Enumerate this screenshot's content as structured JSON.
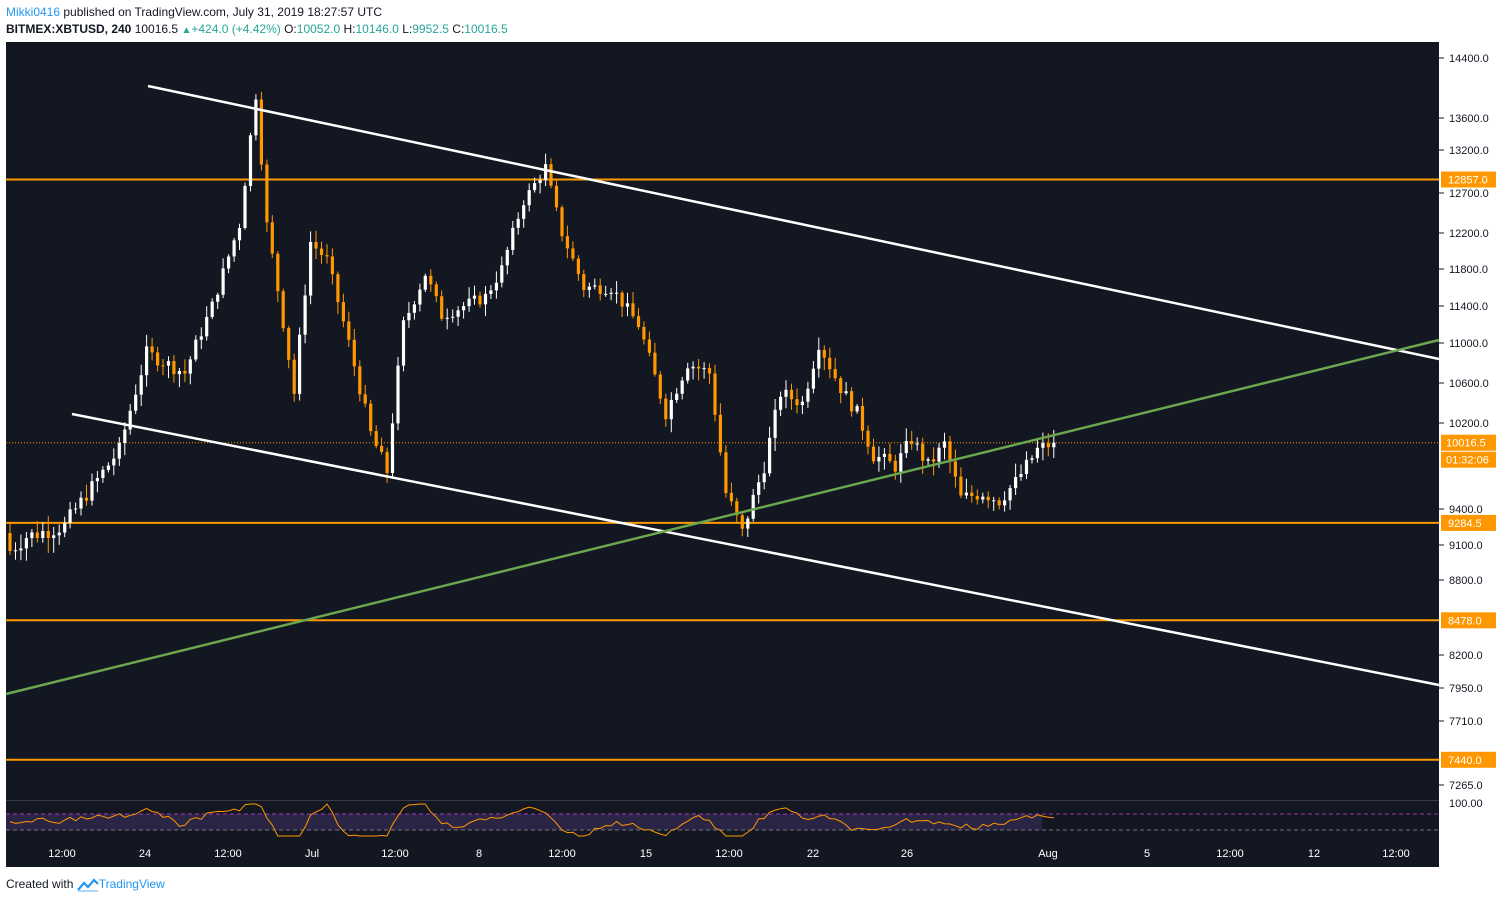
{
  "header": {
    "author": "Mikki0416",
    "published_text": "published on TradingView.com, July 31, 2019 18:27:57 UTC",
    "symbol": "BITMEX:XBTUSD, 240",
    "price": "10016.5",
    "change_icon": "triangle-up-icon",
    "change": "+424.0 (+4.42%)",
    "open_label": "O:",
    "open": "10052.0",
    "high_label": "H:",
    "high": "10146.0",
    "low_label": "L:",
    "low": "9952.5",
    "close_label": "C:",
    "close": "10016.5"
  },
  "footer": {
    "created_with": "Created with",
    "brand": "TradingView",
    "brand_icon": "tradingview-logo-icon"
  },
  "colors": {
    "background": "#131722",
    "bull": "#ffffff",
    "bear": "#ff9800",
    "support": "#ff9800",
    "channel": "#ffffff",
    "trend": "#6aa84f",
    "rsi": "#ff9800"
  },
  "chart_data": {
    "type": "candlestick",
    "symbol": "BITMEX:XBTUSD",
    "interval": "240",
    "y_ticks": [
      14400.0,
      13600.0,
      13200.0,
      12700.0,
      12200.0,
      11800.0,
      11400.0,
      11000.0,
      10600.0,
      10200.0,
      9400.0,
      9100.0,
      8800.0,
      8200.0,
      7950.0,
      7710.0,
      7265.0
    ],
    "y_tick_labels": [
      "14400.0",
      "13600.0",
      "13200.0",
      "12700.0",
      "12200.0",
      "11800.0",
      "11400.0",
      "11000.0",
      "10600.0",
      "10200.0",
      "9400.0",
      "9100.0",
      "8800.0",
      "8200.0",
      "7950.0",
      "7710.0",
      "7265.0"
    ],
    "x_ticks": [
      "12:00",
      "24",
      "12:00",
      "Jul",
      "12:00",
      "8",
      "12:00",
      "15",
      "12:00",
      "22",
      "26",
      "Aug",
      "5",
      "12:00",
      "12",
      "12:00"
    ],
    "horizontal_levels": [
      {
        "label": "12857.0",
        "value": 12857.0
      },
      {
        "label": "9284.5",
        "value": 9284.5
      },
      {
        "label": "8478.0",
        "value": 8478.0
      },
      {
        "label": "7440.0",
        "value": 7440.0
      }
    ],
    "last_price": {
      "label": "10016.5",
      "value": 10016.5
    },
    "countdown": "01:32:06",
    "rsi_label": "100.00",
    "anchors": [
      [
        0,
        9200,
        9050
      ],
      [
        3,
        9100,
        9170
      ],
      [
        10,
        9300,
        9260
      ],
      [
        20,
        10150,
        9950
      ],
      [
        25,
        10850,
        10900
      ],
      [
        32,
        10800,
        10700
      ],
      [
        37,
        10700,
        11400
      ],
      [
        42,
        12500,
        12300
      ],
      [
        45,
        13500,
        13900
      ],
      [
        47,
        12600,
        12300
      ],
      [
        52,
        11200,
        10500
      ],
      [
        55,
        12000,
        12100
      ],
      [
        58,
        11600,
        11900
      ],
      [
        62,
        11300,
        11000
      ],
      [
        66,
        10300,
        10100
      ],
      [
        69,
        10300,
        9750
      ],
      [
        72,
        11100,
        11200
      ],
      [
        76,
        11900,
        11750
      ],
      [
        79,
        11100,
        11300
      ],
      [
        83,
        11350,
        11400
      ],
      [
        87,
        11600,
        11500
      ],
      [
        90,
        11500,
        11800
      ],
      [
        94,
        12500,
        12600
      ],
      [
        98,
        13100,
        13000
      ],
      [
        101,
        12400,
        12200
      ],
      [
        105,
        11700,
        11600
      ],
      [
        110,
        11750,
        11600
      ],
      [
        115,
        11550,
        11200
      ],
      [
        120,
        10600,
        10300
      ],
      [
        124,
        10500,
        10800
      ],
      [
        128,
        10900,
        10700
      ],
      [
        131,
        9800,
        9550
      ],
      [
        134,
        9550,
        9200
      ],
      [
        138,
        9650,
        9800
      ],
      [
        141,
        10600,
        10500
      ],
      [
        145,
        10500,
        10400
      ],
      [
        148,
        10800,
        11000
      ],
      [
        152,
        10700,
        10550
      ],
      [
        155,
        10500,
        10300
      ],
      [
        158,
        10000,
        9900
      ],
      [
        162,
        9950,
        9800
      ],
      [
        165,
        9850,
        10050
      ],
      [
        168,
        9850,
        9800
      ],
      [
        171,
        10100,
        10000
      ],
      [
        174,
        9600,
        9500
      ],
      [
        178,
        9500,
        9550
      ],
      [
        181,
        9600,
        9480
      ],
      [
        184,
        9500,
        9650
      ],
      [
        188,
        9750,
        9950
      ],
      [
        191,
        10100,
        10016.5
      ]
    ]
  }
}
